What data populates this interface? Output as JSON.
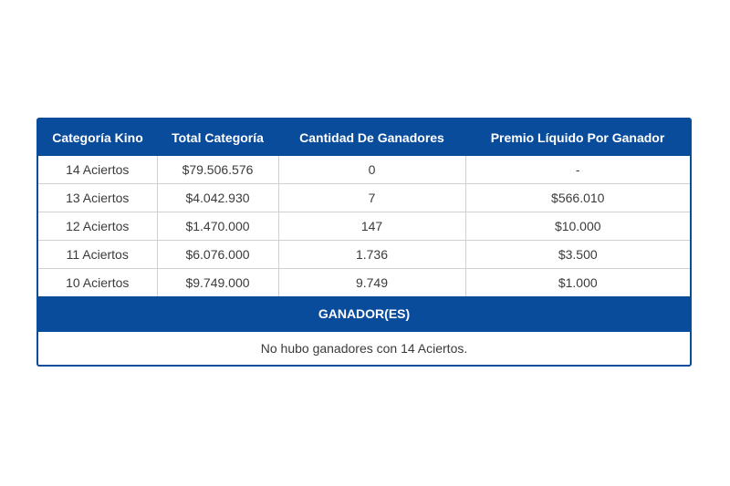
{
  "table": {
    "headers": [
      "Categoría Kino",
      "Total Categoría",
      "Cantidad De Ganadores",
      "Premio Líquido Por Ganador"
    ],
    "rows": [
      [
        "14 Aciertos",
        "$79.506.576",
        "0",
        "-"
      ],
      [
        "13 Aciertos",
        "$4.042.930",
        "7",
        "$566.010"
      ],
      [
        "12 Aciertos",
        "$1.470.000",
        "147",
        "$10.000"
      ],
      [
        "11 Aciertos",
        "$6.076.000",
        "1.736",
        "$3.500"
      ],
      [
        "10 Aciertos",
        "$9.749.000",
        "9.749",
        "$1.000"
      ]
    ]
  },
  "winners": {
    "title": "GANADOR(ES)",
    "message": "No hubo ganadores con 14 Aciertos."
  },
  "colors": {
    "header_bg": "#0a4c9c",
    "header_text": "#ffffff",
    "body_text": "#3b3b3b"
  }
}
